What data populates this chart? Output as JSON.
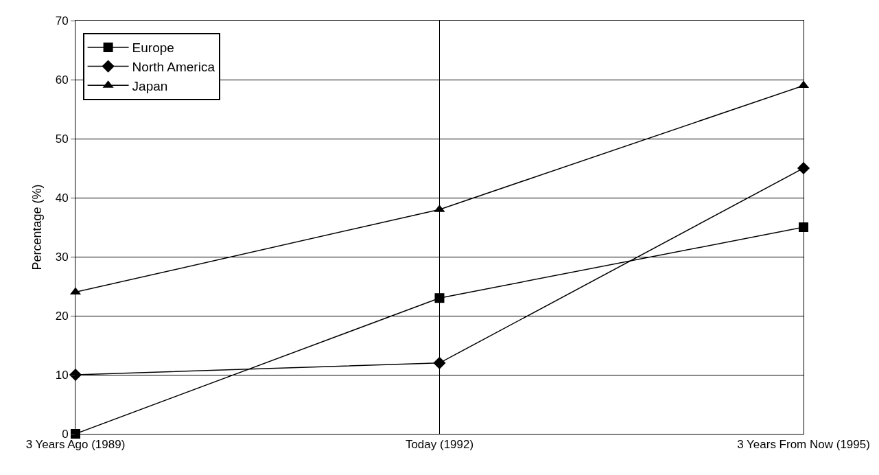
{
  "chart_data": {
    "type": "line",
    "ylabel": "Percentage (%)",
    "categories": [
      "3 Years Ago (1989)",
      "Today (1992)",
      "3 Years From Now (1995)"
    ],
    "series": [
      {
        "name": "Europe",
        "color": "#000000",
        "marker": "square",
        "values": [
          0,
          23,
          35
        ]
      },
      {
        "name": "North America",
        "color": "#000000",
        "marker": "diamond",
        "values": [
          10,
          12,
          45
        ]
      },
      {
        "name": "Japan",
        "color": "#000000",
        "marker": "triangle",
        "values": [
          24,
          38,
          59
        ]
      }
    ],
    "ylim": [
      0,
      70
    ],
    "yticks": [
      0,
      10,
      20,
      30,
      40,
      50,
      60,
      70
    ],
    "grid": true,
    "legend": "top left",
    "line_style": "solid"
  }
}
